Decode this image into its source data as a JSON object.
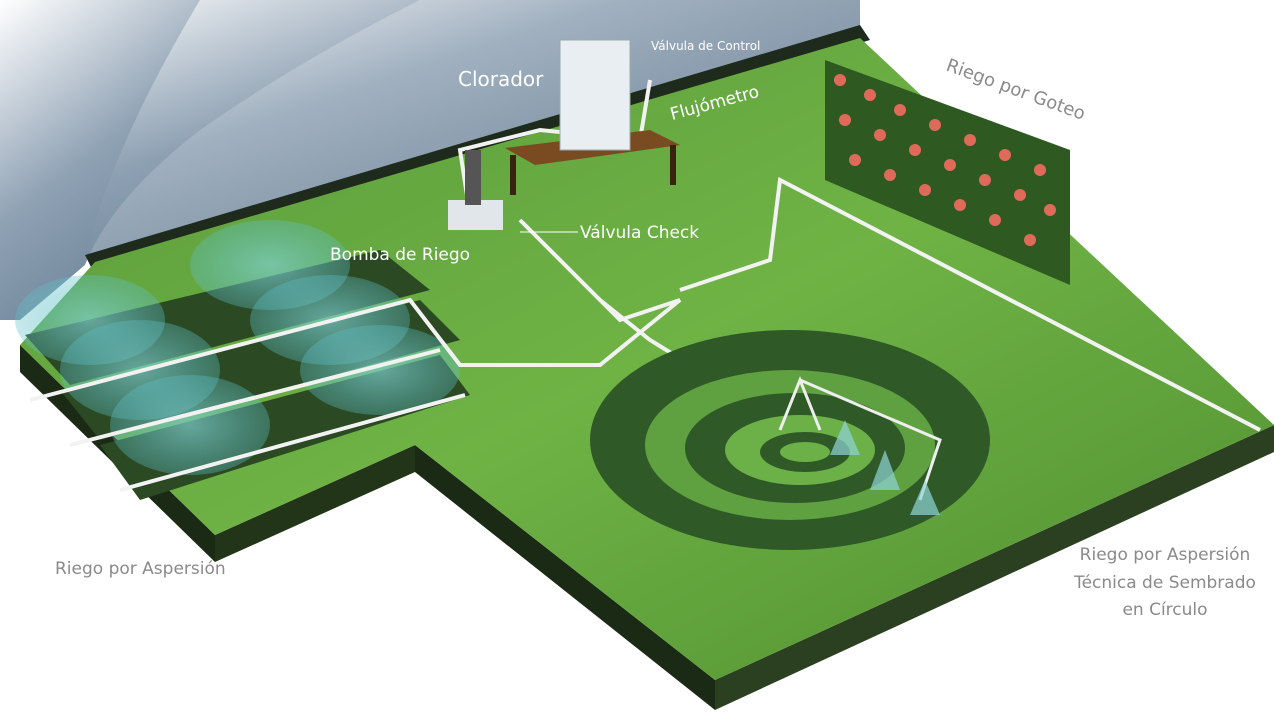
{
  "labels": {
    "clorador": "Clorador",
    "valvula_control": "Válvula de Control",
    "flujometro": "Flujómetro",
    "goteo": "Riego por Goteo",
    "valvula_check": "Válvula Check",
    "bomba": "Bomba de Riego",
    "aspersion": "Riego por Aspersión",
    "circulo": [
      "Riego por Aspersión",
      "Técnica de Sembrado",
      "en Círculo"
    ]
  }
}
